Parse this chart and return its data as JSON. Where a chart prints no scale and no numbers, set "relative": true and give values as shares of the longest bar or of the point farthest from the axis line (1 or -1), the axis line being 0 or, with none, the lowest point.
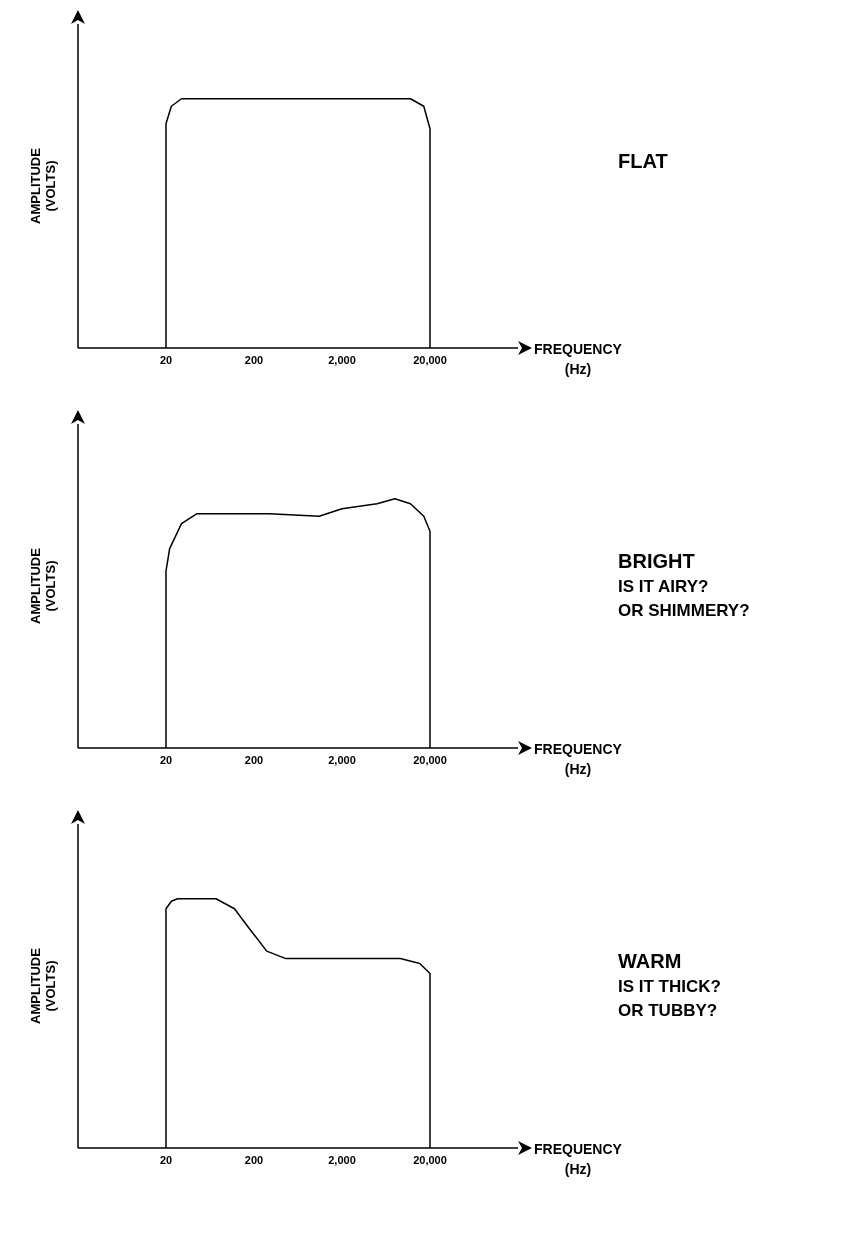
{
  "chart_data": [
    {
      "type": "line",
      "annotations": [
        "FLAT"
      ],
      "xlabel": "FREQUENCY (Hz)",
      "ylabel": "AMPLITUDE (VOLTS)",
      "relative": true,
      "log": "x",
      "xlim": [
        2,
        200000
      ],
      "xticks": [
        {
          "value": 20,
          "label": "20"
        },
        {
          "value": 200,
          "label": "200"
        },
        {
          "value": 2000,
          "label": "2,000"
        },
        {
          "value": 20000,
          "label": "20,000"
        }
      ],
      "color": "#000000",
      "x": [
        20,
        20,
        23,
        30,
        12000,
        17000,
        20000,
        20000
      ],
      "values": [
        0,
        0.9,
        0.97,
        1,
        1,
        0.97,
        0.88,
        0
      ]
    },
    {
      "type": "line",
      "annotations": [
        "BRIGHT",
        "IS IT AIRY?",
        "OR SHIMMERY?"
      ],
      "xlabel": "FREQUENCY (Hz)",
      "ylabel": "AMPLITUDE (VOLTS)",
      "relative": true,
      "log": "x",
      "xlim": [
        2,
        200000
      ],
      "xticks": [
        {
          "value": 20,
          "label": "20"
        },
        {
          "value": 200,
          "label": "200"
        },
        {
          "value": 2000,
          "label": "2,000"
        },
        {
          "value": 20000,
          "label": "20,000"
        }
      ],
      "color": "#000000",
      "x": [
        20,
        20,
        22,
        30,
        45,
        300,
        1100,
        2000,
        5000,
        8000,
        12000,
        17000,
        20000,
        20000
      ],
      "values": [
        0,
        0.71,
        0.8,
        0.9,
        0.94,
        0.94,
        0.93,
        0.96,
        0.98,
        1,
        0.98,
        0.93,
        0.87,
        0
      ]
    },
    {
      "type": "line",
      "annotations": [
        "WARM",
        "IS IT THICK?",
        "OR TUBBY?"
      ],
      "xlabel": "FREQUENCY (Hz)",
      "ylabel": "AMPLITUDE (VOLTS)",
      "relative": true,
      "log": "x",
      "xlim": [
        2,
        200000
      ],
      "xticks": [
        {
          "value": 20,
          "label": "20"
        },
        {
          "value": 200,
          "label": "200"
        },
        {
          "value": 2000,
          "label": "2,000"
        },
        {
          "value": 20000,
          "label": "20,000"
        }
      ],
      "color": "#000000",
      "x": [
        20,
        20,
        23,
        27,
        74,
        120,
        169,
        279,
        460,
        1260,
        9200,
        15300,
        20000,
        20000
      ],
      "values": [
        0,
        0.96,
        0.99,
        1,
        1,
        0.96,
        0.89,
        0.79,
        0.76,
        0.76,
        0.76,
        0.74,
        0.7,
        0
      ]
    }
  ]
}
